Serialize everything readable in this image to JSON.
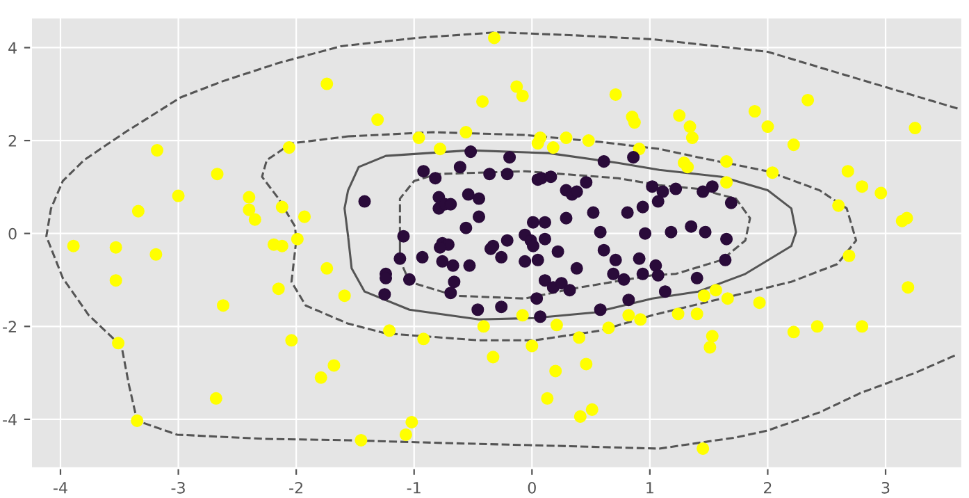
{
  "chart_data": {
    "type": "scatter",
    "xlim": [
      -4.25,
      3.65
    ],
    "ylim": [
      -5.05,
      4.65
    ],
    "xticks": [
      -4,
      -3,
      -2,
      -1,
      0,
      1,
      2,
      3
    ],
    "yticks": [
      -4,
      -2,
      0,
      2,
      4
    ],
    "grid": true,
    "marker": "circle",
    "series": [
      {
        "color": "#ffff00",
        "x": [
          -0.32,
          -1.74,
          -0.13,
          -0.08,
          -0.42,
          0.71,
          0.85,
          0.87,
          -1.31,
          -0.96,
          -0.56,
          -0.78,
          0.07,
          0.05,
          0.18,
          0.29,
          0.48,
          0.91,
          -3.18,
          -2.67,
          -3.0,
          -3.34,
          -2.4,
          -2.4,
          -2.35,
          -2.06,
          -2.12,
          -1.93,
          -3.89,
          -3.53,
          -3.19,
          -3.53,
          -2.19,
          -2.12,
          -1.99,
          -1.74,
          -1.59,
          -2.15,
          -2.62,
          -2.04,
          -3.51,
          -1.68,
          -1.79,
          -2.68,
          -3.35,
          -1.21,
          -0.92,
          -0.41,
          -0.33,
          -0.08,
          0.0,
          0.21,
          0.4,
          0.2,
          0.46,
          0.13,
          0.41,
          0.51,
          -1.02,
          -1.07,
          -1.45,
          0.65,
          0.82,
          0.92,
          2.69,
          3.19,
          1.46,
          1.56,
          1.66,
          1.93,
          1.24,
          1.4,
          1.53,
          1.51,
          2.22,
          2.42,
          2.8,
          1.45,
          2.34,
          1.89,
          2.0,
          1.25,
          1.34,
          1.36,
          2.22,
          3.25,
          1.29,
          1.32,
          1.65,
          2.04,
          1.65,
          2.68,
          2.8,
          2.96,
          2.6,
          3.14,
          3.18
        ],
        "values": [
          4.21,
          3.22,
          3.16,
          2.96,
          2.84,
          2.99,
          2.51,
          2.39,
          2.45,
          2.06,
          2.18,
          1.82,
          2.06,
          1.94,
          1.85,
          2.06,
          2.0,
          1.82,
          1.79,
          1.28,
          0.81,
          0.48,
          0.78,
          0.51,
          0.3,
          1.85,
          0.57,
          0.36,
          -0.27,
          -0.3,
          -0.45,
          -1.01,
          -0.24,
          -0.27,
          -0.12,
          -0.75,
          -1.34,
          -1.19,
          -1.55,
          -2.3,
          -2.36,
          -2.84,
          -3.1,
          -3.55,
          -4.03,
          -2.09,
          -2.27,
          -2.0,
          -2.66,
          -1.76,
          -2.42,
          -1.97,
          -2.24,
          -2.96,
          -2.81,
          -3.55,
          -3.94,
          -3.79,
          -4.06,
          -4.33,
          -4.45,
          -2.03,
          -1.76,
          -1.85,
          -0.48,
          -1.16,
          -1.34,
          -1.22,
          -1.4,
          -1.49,
          -1.73,
          -1.73,
          -2.21,
          -2.45,
          -2.12,
          -2.0,
          -2.0,
          -4.63,
          2.87,
          2.63,
          2.3,
          2.54,
          2.3,
          2.06,
          1.91,
          2.27,
          1.52,
          1.43,
          1.55,
          1.31,
          1.1,
          1.34,
          1.01,
          0.87,
          0.6,
          0.27,
          0.33
        ]
      },
      {
        "color": "#2a0b3a",
        "x": [
          -0.52,
          -0.19,
          0.61,
          0.86,
          -0.92,
          -0.82,
          -0.61,
          -0.36,
          -0.21,
          0.05,
          0.08,
          0.16,
          0.46,
          1.02,
          -1.42,
          -0.79,
          -0.79,
          -0.74,
          -0.69,
          -0.54,
          -0.45,
          -0.45,
          -0.56,
          0.29,
          0.34,
          0.38,
          0.29,
          0.52,
          0.81,
          0.94,
          0.01,
          0.11,
          0.58,
          0.96,
          -1.09,
          -0.76,
          -0.71,
          -0.33,
          -0.21,
          -0.06,
          -0.01,
          0.11,
          1.11,
          1.07,
          1.22,
          1.45,
          1.53,
          1.69,
          1.18,
          1.35,
          1.47,
          1.65,
          -0.78,
          0.01,
          0.22,
          0.61,
          -1.12,
          -0.93,
          -0.76,
          -0.67,
          -0.53,
          -0.35,
          -0.26,
          -0.06,
          0.05,
          0.38,
          0.71,
          0.91,
          0.69,
          0.78,
          0.94,
          1.05,
          -1.24,
          -1.24,
          -1.04,
          -1.25,
          -0.66,
          -0.69,
          0.11,
          0.18,
          0.25,
          0.32,
          0.04,
          -0.46,
          -0.26,
          0.07,
          0.58,
          0.82,
          1.64,
          1.07,
          1.4,
          1.13
        ],
        "values": [
          1.76,
          1.64,
          1.55,
          1.64,
          1.34,
          1.19,
          1.43,
          1.28,
          1.28,
          1.16,
          1.19,
          1.22,
          1.1,
          1.01,
          0.69,
          0.78,
          0.54,
          0.63,
          0.63,
          0.84,
          0.75,
          0.36,
          0.12,
          0.93,
          0.84,
          0.9,
          0.33,
          0.45,
          0.45,
          0.57,
          0.24,
          0.24,
          0.03,
          0.0,
          -0.06,
          -0.21,
          -0.24,
          -0.27,
          -0.15,
          -0.03,
          -0.15,
          -0.12,
          0.9,
          0.69,
          0.96,
          0.9,
          1.01,
          0.66,
          0.03,
          0.15,
          0.03,
          -0.12,
          -0.3,
          -0.27,
          -0.39,
          -0.36,
          -0.54,
          -0.51,
          -0.6,
          -0.69,
          -0.69,
          -0.33,
          -0.51,
          -0.6,
          -0.57,
          -0.75,
          -0.57,
          -0.54,
          -0.87,
          -0.99,
          -0.87,
          -0.69,
          -0.87,
          -0.96,
          -0.99,
          -1.31,
          -1.04,
          -1.28,
          -1.01,
          -1.16,
          -1.07,
          -1.22,
          -1.4,
          -1.64,
          -1.58,
          -1.79,
          -1.64,
          -1.43,
          -0.57,
          -0.9,
          -0.96,
          -1.25
        ]
      },
      {
        "type": "line",
        "color": "#555555",
        "line_style": "dashed",
        "marker": "none",
        "x": [
          3.61,
          2.79,
          2.0,
          1.02,
          0.32,
          -0.29,
          -0.98,
          -1.62,
          -2.15,
          -2.62,
          -2.98,
          -3.45,
          -3.8,
          -3.98,
          -4.08,
          -4.12,
          -3.98,
          -3.76,
          -3.56,
          -3.48,
          -3.42,
          -3.35,
          -3.01,
          -2.27,
          -1.56,
          -0.74,
          0.2,
          1.08,
          1.73,
          2.0,
          2.44,
          2.79,
          3.26,
          3.61
        ],
        "values": [
          2.69,
          3.31,
          3.91,
          4.18,
          4.27,
          4.33,
          4.21,
          4.03,
          3.67,
          3.28,
          2.93,
          2.18,
          1.58,
          1.13,
          0.54,
          -0.06,
          -0.96,
          -1.76,
          -2.24,
          -2.45,
          -3.25,
          -4.03,
          -4.33,
          -4.42,
          -4.45,
          -4.51,
          -4.57,
          -4.63,
          -4.39,
          -4.24,
          -3.85,
          -3.43,
          -2.99,
          -2.6
        ]
      }
    ]
  }
}
